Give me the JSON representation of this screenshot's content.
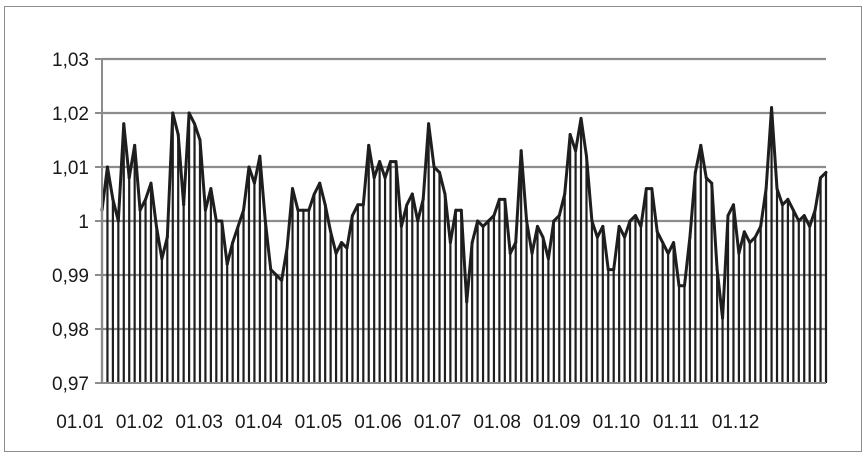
{
  "chart_data": {
    "type": "area",
    "title": "",
    "xlabel": "",
    "ylabel": "",
    "ylim": [
      0.97,
      1.03
    ],
    "yticks": [
      "1,03",
      "1,02",
      "1,01",
      "1",
      "0,99",
      "0,98",
      "0,97"
    ],
    "ytick_values": [
      1.03,
      1.02,
      1.01,
      1.0,
      0.99,
      0.98,
      0.97
    ],
    "xticks": [
      "01.01",
      "01.02",
      "01.03",
      "01.04",
      "01.05",
      "01.06",
      "01.07",
      "01.08",
      "01.09",
      "01.10",
      "01.11",
      "01.12"
    ],
    "grid": "horizontal",
    "legend": "none",
    "colors": {
      "line": "#1e1e1e",
      "fill": "#1e1e1e",
      "grid": "#8c8c8c",
      "axis": "#8c8c8c",
      "frame": "#8c8c8c"
    },
    "series": [
      {
        "values": [
          1.002,
          1.01,
          1.004,
          1.0,
          1.018,
          1.008,
          1.014,
          1.002,
          1.004,
          1.007,
          0.999,
          0.993,
          0.997,
          1.02,
          1.016,
          1.003,
          1.02,
          1.018,
          1.015,
          1.002,
          1.006,
          1.0,
          1.0,
          0.992,
          0.996,
          0.999,
          1.002,
          1.01,
          1.007,
          1.012,
          1.0,
          0.991,
          0.99,
          0.989,
          0.995,
          1.006,
          1.002,
          1.002,
          1.002,
          1.005,
          1.007,
          1.003,
          0.998,
          0.994,
          0.996,
          0.995,
          1.001,
          1.003,
          1.003,
          1.014,
          1.008,
          1.011,
          1.008,
          1.011,
          1.011,
          0.999,
          1.003,
          1.005,
          1.0,
          1.004,
          1.018,
          1.01,
          1.009,
          1.005,
          0.996,
          1.002,
          1.002,
          0.985,
          0.996,
          1.0,
          0.999,
          1.0,
          1.001,
          1.004,
          1.004,
          0.994,
          0.996,
          1.013,
          1.0,
          0.994,
          0.999,
          0.997,
          0.993,
          1.0,
          1.001,
          1.005,
          1.016,
          1.013,
          1.019,
          1.012,
          1.0,
          0.997,
          0.999,
          0.991,
          0.991,
          0.999,
          0.997,
          1.0,
          1.001,
          0.999,
          1.006,
          1.006,
          0.998,
          0.996,
          0.994,
          0.996,
          0.988,
          0.988,
          0.997,
          1.009,
          1.014,
          1.008,
          1.007,
          0.991,
          0.982,
          1.001,
          1.003,
          0.994,
          0.998,
          0.996,
          0.997,
          0.999,
          1.006,
          1.021,
          1.006,
          1.003,
          1.004,
          1.002,
          1.0,
          1.001,
          0.999,
          1.002,
          1.008,
          1.009
        ]
      }
    ]
  }
}
